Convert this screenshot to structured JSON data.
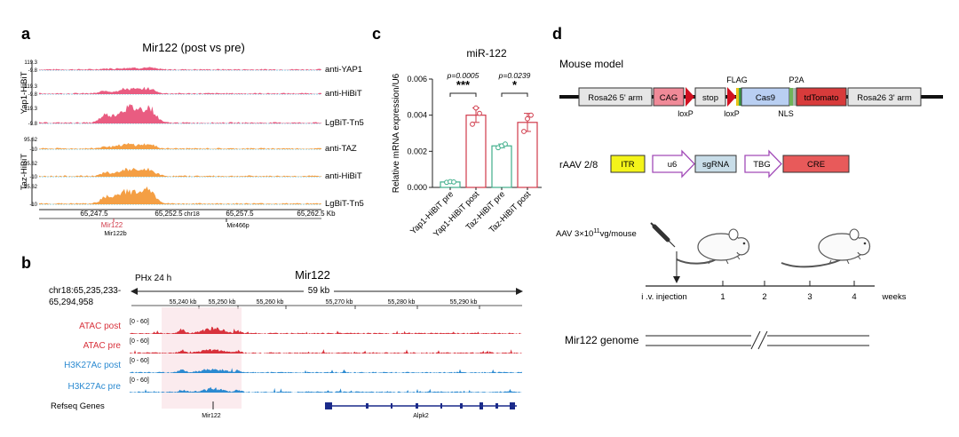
{
  "panel_a": {
    "letter": "a",
    "title": "Mir122 (post vs pre)",
    "groups": [
      {
        "label": "Yap1-HiBiT",
        "tracks": [
          {
            "name": "anti-YAP1",
            "max": "119.3",
            "min": "-9.8",
            "color": "#e8537a"
          },
          {
            "name": "anti-HiBiT",
            "max": "119.3",
            "min": "-9.8",
            "color": "#e8537a"
          },
          {
            "name": "LgBiT-Tn5",
            "max": "119.3",
            "min": "-9.8",
            "color": "#e8537a"
          }
        ]
      },
      {
        "label": "Taz-HiBiT",
        "tracks": [
          {
            "name": "anti-TAZ",
            "max": "95.62",
            "min": "-10",
            "color": "#f39a3a"
          },
          {
            "name": "anti-HiBiT",
            "max": "95.62",
            "min": "-10",
            "color": "#f39a3a"
          },
          {
            "name": "LgBiT-Tn5",
            "max": "95.62",
            "min": "-10",
            "color": "#f39a3a"
          }
        ]
      }
    ],
    "coords": [
      "65,247.5",
      "65,252.5",
      "65,257.5",
      "65,262.5 Kb"
    ],
    "chrom": "chr18",
    "genes": [
      "Mir122",
      "Mir122b",
      "Mir466p"
    ]
  },
  "panel_b": {
    "letter": "b",
    "condition": "PHx 24 h",
    "title": "Mir122",
    "region": "chr18:65,235,233-",
    "region2": "65,294,958",
    "span": "59 kb",
    "ticks": [
      "55,240 kb",
      "55,250 kb",
      "55,260 kb",
      "55,270 kb",
      "55,280 kb",
      "55,290 kb"
    ],
    "tracks": [
      {
        "name": "ATAC post",
        "range": "[0 - 60]",
        "color": "#d8323c"
      },
      {
        "name": "ATAC pre",
        "range": "[0 - 60]",
        "color": "#d8323c"
      },
      {
        "name": "H3K27Ac post",
        "range": "[0 - 60]",
        "color": "#2b8ad1"
      },
      {
        "name": "H3K27Ac pre",
        "range": "[0 - 60]",
        "color": "#2b8ad1"
      }
    ],
    "refseq_label": "Refseq Genes",
    "genes": [
      "Mir122",
      "Alpk2"
    ]
  },
  "panel_c": {
    "letter": "c",
    "chart_data": {
      "type": "bar",
      "title": "miR-122",
      "ylabel": "Relative mRNA expression/U6",
      "ylim": [
        0,
        0.006
      ],
      "yticks": [
        "0.000",
        "0.002",
        "0.004",
        "0.006"
      ],
      "categories": [
        "Yap1-HiBiT pre",
        "Yap1-HiBiT post",
        "Taz-HiBiT pre",
        "Taz-HiBiT post"
      ],
      "values": [
        0.0003,
        0.004,
        0.0023,
        0.0036
      ],
      "errors": [
        5e-05,
        0.0004,
        0.0001,
        0.0005
      ],
      "points": [
        [
          0.00028,
          0.00032,
          0.0003
        ],
        [
          0.0035,
          0.0044,
          0.0041
        ],
        [
          0.0022,
          0.0023,
          0.0024
        ],
        [
          0.0031,
          0.0038,
          0.004
        ]
      ],
      "colors": [
        "#3fae8a",
        "#d03a4a",
        "#3fae8a",
        "#d03a4a"
      ],
      "comparisons": [
        {
          "p": "p=0.0005",
          "stars": "***"
        },
        {
          "p": "p=0.0239",
          "stars": "*"
        }
      ]
    }
  },
  "panel_d": {
    "letter": "d",
    "mouse_model_label": "Mouse model",
    "construct": [
      "Rosa26 5' arm",
      "CAG",
      "stop",
      "Cas9",
      "tdTomato",
      "Rosa26 3' arm"
    ],
    "construct_labels": {
      "loxp1": "loxP",
      "loxp2": "loxP",
      "flag": "FLAG",
      "p2a": "P2A",
      "nls": "NLS"
    },
    "raav_label": "rAAV 2/8",
    "raav": [
      "ITR",
      "u6",
      "sgRNA",
      "TBG",
      "CRE"
    ],
    "dose_prefix": "AAV 3×10",
    "dose_exp": "11",
    "dose_suffix": "vg/mouse",
    "timeline": {
      "injection": "i .v. injection",
      "ticks": [
        "1",
        "2",
        "3",
        "4"
      ],
      "unit": "weeks"
    },
    "genome_label": "Mir122 genome"
  }
}
